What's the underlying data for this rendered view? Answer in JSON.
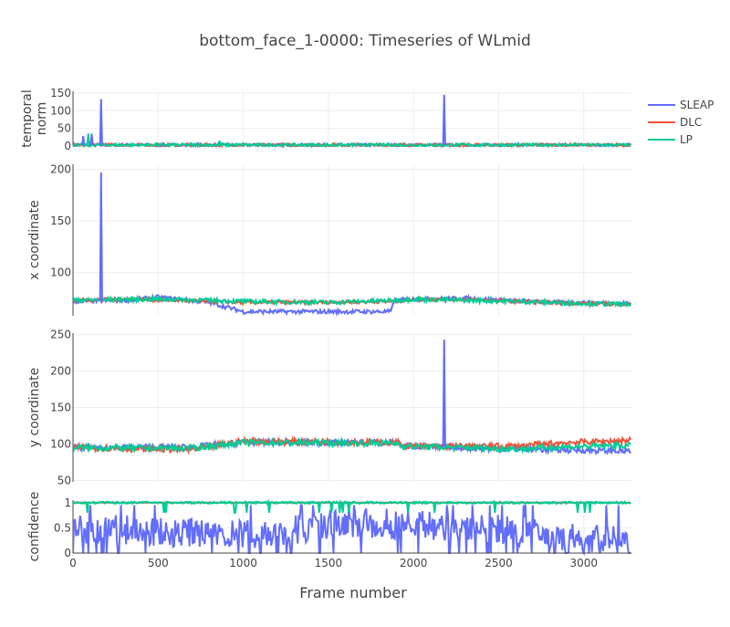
{
  "title": "bottom_face_1-0000: Timeseries of WLmid",
  "x_axis_label": "Frame number",
  "legend": [
    {
      "name": "SLEAP",
      "color": "#636efa"
    },
    {
      "name": "DLC",
      "color": "#ef553b"
    },
    {
      "name": "LP",
      "color": "#00cc96"
    }
  ],
  "chart_data": {
    "type": "line",
    "title": "bottom_face_1-0000: Timeseries of WLmid",
    "xlabel": "Frame number",
    "xlim": [
      0,
      3280
    ],
    "x_ticks": [
      0,
      500,
      1000,
      1500,
      2000,
      2500,
      3000
    ],
    "legend_position": "top-right",
    "grid": true,
    "series_colors": {
      "SLEAP": "#636efa",
      "DLC": "#ef553b",
      "LP": "#00cc96"
    },
    "panels": [
      {
        "ylabel": "temporal norm",
        "ylabel_lines": [
          "temporal",
          "norm"
        ],
        "ylim": [
          0,
          155
        ],
        "y_ticks": [
          0,
          50,
          100,
          150
        ],
        "baselines": {
          "SLEAP": 3,
          "DLC": 3,
          "LP": 3
        },
        "noise": {
          "SLEAP": 4,
          "DLC": 4,
          "LP": 4
        },
        "spikes": [
          {
            "series": "SLEAP",
            "x": 165,
            "y": 133
          },
          {
            "series": "SLEAP",
            "x": 2180,
            "y": 145
          },
          {
            "series": "SLEAP",
            "x": 110,
            "y": 35
          },
          {
            "series": "SLEAP",
            "x": 60,
            "y": 28
          },
          {
            "series": "LP",
            "x": 90,
            "y": 35
          },
          {
            "series": "LP",
            "x": 860,
            "y": 15
          }
        ]
      },
      {
        "ylabel": "x coordinate",
        "ylim": [
          58,
          205
        ],
        "y_ticks": [
          100,
          150,
          200
        ],
        "segments": {
          "SLEAP": [
            [
              0,
              72
            ],
            [
              300,
              73
            ],
            [
              500,
              76
            ],
            [
              800,
              71
            ],
            [
              1000,
              62
            ],
            [
              1500,
              62
            ],
            [
              1870,
              62
            ],
            [
              1880,
              72
            ],
            [
              1950,
              74
            ],
            [
              2300,
              75
            ],
            [
              2550,
              73
            ],
            [
              2800,
              71
            ],
            [
              3280,
              70
            ]
          ],
          "DLC": [
            [
              0,
              73
            ],
            [
              300,
              74
            ],
            [
              600,
              73
            ],
            [
              1000,
              71
            ],
            [
              1500,
              71
            ],
            [
              1900,
              72
            ],
            [
              2000,
              74
            ],
            [
              2300,
              74
            ],
            [
              2600,
              72
            ],
            [
              3000,
              70
            ],
            [
              3280,
              69
            ]
          ],
          "LP": [
            [
              0,
              73
            ],
            [
              300,
              74
            ],
            [
              600,
              74
            ],
            [
              1000,
              72
            ],
            [
              1500,
              71
            ],
            [
              1900,
              73
            ],
            [
              2000,
              74
            ],
            [
              2300,
              73
            ],
            [
              2600,
              72
            ],
            [
              3000,
              70
            ],
            [
              3280,
              69
            ]
          ]
        },
        "noise": {
          "SLEAP": 2,
          "DLC": 1.6,
          "LP": 2
        },
        "spikes": [
          {
            "series": "SLEAP",
            "x": 165,
            "y": 197
          }
        ]
      },
      {
        "ylabel": "y coordinate",
        "ylim": [
          48,
          252
        ],
        "y_ticks": [
          50,
          100,
          150,
          200,
          250
        ],
        "segments": {
          "SLEAP": [
            [
              0,
              95
            ],
            [
              700,
              96
            ],
            [
              1000,
              102
            ],
            [
              1900,
              102
            ],
            [
              1950,
              97
            ],
            [
              2600,
              93
            ],
            [
              2900,
              92
            ],
            [
              3280,
              90
            ]
          ],
          "DLC": [
            [
              0,
              95
            ],
            [
              700,
              92
            ],
            [
              1000,
              104
            ],
            [
              1900,
              102
            ],
            [
              1950,
              97
            ],
            [
              2600,
              97
            ],
            [
              2900,
              102
            ],
            [
              3280,
              105
            ]
          ],
          "LP": [
            [
              0,
              95
            ],
            [
              700,
              94
            ],
            [
              1000,
              102
            ],
            [
              1900,
              101
            ],
            [
              1950,
              97
            ],
            [
              2600,
              93
            ],
            [
              2900,
              96
            ],
            [
              3280,
              98
            ]
          ]
        },
        "noise": {
          "SLEAP": 4,
          "DLC": 4,
          "LP": 4
        },
        "spikes": [
          {
            "series": "SLEAP",
            "x": 2180,
            "y": 243
          }
        ]
      },
      {
        "ylabel": "confidence",
        "ylim": [
          0,
          1.05
        ],
        "y_ticks": [
          0,
          0.5,
          1
        ],
        "segments": {
          "SLEAP": [
            [
              0,
              0.5
            ],
            [
              1000,
              0.35
            ],
            [
              1600,
              0.6
            ],
            [
              2200,
              0.55
            ],
            [
              2600,
              0.45
            ],
            [
              2900,
              0.3
            ],
            [
              3280,
              0.25
            ]
          ],
          "DLC": [
            [
              0,
              1
            ],
            [
              3280,
              1
            ]
          ],
          "LP": [
            [
              0,
              1
            ],
            [
              3280,
              1
            ]
          ]
        },
        "noise": {
          "SLEAP": 0.3,
          "DLC": 0,
          "LP": 0.02
        }
      }
    ]
  }
}
